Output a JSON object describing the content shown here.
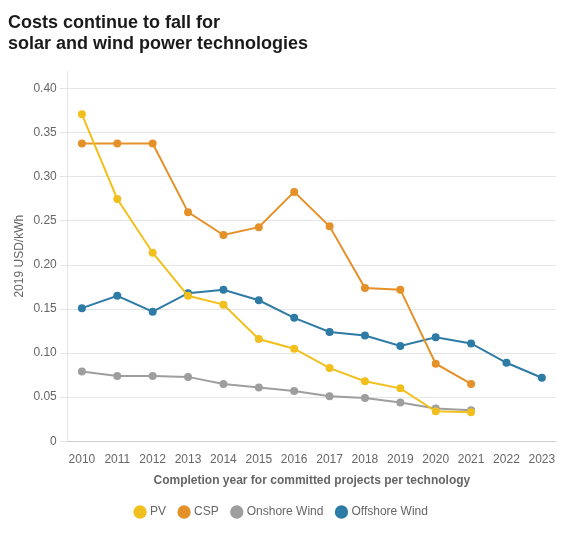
{
  "chart_data": {
    "type": "line",
    "title": [
      "Costs continue to fall for",
      "solar and wind power technologies"
    ],
    "x_label": "Completion year for committed projects per technology",
    "y_label": "2019 USD/kWh",
    "x": [
      2010,
      2011,
      2012,
      2013,
      2014,
      2015,
      2016,
      2017,
      2018,
      2019,
      2020,
      2021,
      2022,
      2023
    ],
    "series": [
      {
        "name": "PV",
        "color": "#F2C01E",
        "marker": "circle",
        "values": [
          0.371,
          0.275,
          0.214,
          0.165,
          0.155,
          0.116,
          0.105,
          0.083,
          0.068,
          0.06,
          0.034,
          0.033,
          null,
          null
        ]
      },
      {
        "name": "CSP",
        "color": "#E5912A",
        "marker": "circle",
        "values": [
          0.338,
          0.338,
          0.338,
          0.26,
          0.234,
          0.243,
          0.283,
          0.244,
          0.174,
          0.172,
          0.088,
          0.065,
          null,
          null
        ]
      },
      {
        "name": "Onshore Wind",
        "color": "#9E9E9E",
        "marker": "circle",
        "values": [
          0.079,
          0.074,
          0.074,
          0.073,
          0.065,
          0.061,
          0.057,
          0.051,
          0.049,
          0.044,
          0.037,
          0.035,
          null,
          null
        ]
      },
      {
        "name": "Offshore Wind",
        "color": "#2E7BA6",
        "marker": "circle",
        "values": [
          0.151,
          0.165,
          0.147,
          0.168,
          0.172,
          0.16,
          0.14,
          0.124,
          0.12,
          0.108,
          0.118,
          0.111,
          0.089,
          0.072
        ]
      }
    ],
    "xlim": [
      2009.6,
      2023.4
    ],
    "xticks": [
      2010,
      2011,
      2012,
      2013,
      2014,
      2015,
      2016,
      2017,
      2018,
      2019,
      2020,
      2021,
      2022,
      2023
    ],
    "ylim": [
      0,
      0.42
    ],
    "yticks": [
      0,
      0.05,
      {
        "value": 0.1,
        "label": "0.10"
      },
      0.15,
      {
        "value": 0.2,
        "label": "0.20"
      },
      0.25,
      {
        "value": 0.3,
        "label": "0.30"
      },
      0.35,
      {
        "value": 0.4,
        "label": "0.40"
      }
    ],
    "grid": true,
    "legend": "bottom"
  }
}
